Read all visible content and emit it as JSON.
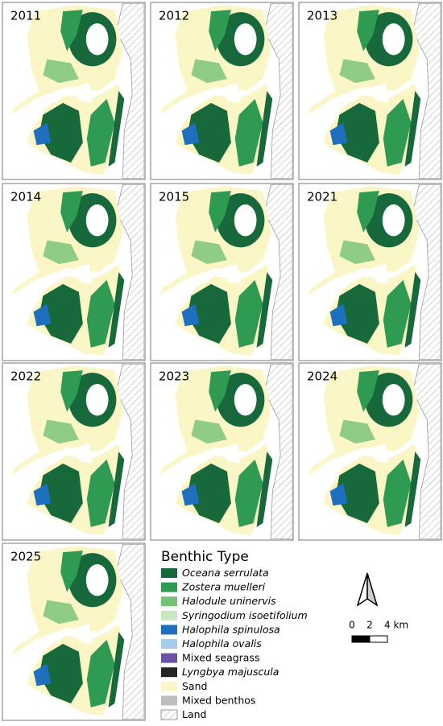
{
  "panels": [
    {
      "label": "2011"
    },
    {
      "label": "2012"
    },
    {
      "label": "2013"
    },
    {
      "label": "2014"
    },
    {
      "label": "2015"
    },
    {
      "label": "2021"
    },
    {
      "label": "2022"
    },
    {
      "label": "2023"
    },
    {
      "label": "2024"
    },
    {
      "label": "2025"
    }
  ],
  "legend": {
    "title": "Benthic Type",
    "items": [
      {
        "label": "Oceana serrulata",
        "color": "#17683a",
        "style": "italic"
      },
      {
        "label": "Zostera muelleri",
        "color": "#2f9a52",
        "style": "italic"
      },
      {
        "label": "Halodule uninervis",
        "color": "#74c273",
        "style": "italic"
      },
      {
        "label": "Syringodium isoetifolium",
        "color": "#c9e7c2",
        "style": "italic"
      },
      {
        "label": "Halophila spinulosa",
        "color": "#1f6fbf",
        "style": "italic"
      },
      {
        "label": "Halophila ovalis",
        "color": "#a5cde9",
        "style": "italic"
      },
      {
        "label": "Mixed seagrass",
        "color": "#6b52a5",
        "style": "normal"
      },
      {
        "label": "Lyngbya majuscula",
        "color": "#242424",
        "style": "italic"
      },
      {
        "label": "Sand",
        "color": "#fbf6c6",
        "style": "normal"
      },
      {
        "label": "Mixed benthos",
        "color": "#bdbdbd",
        "style": "normal"
      },
      {
        "label": "Land",
        "style": "normal"
      }
    ]
  },
  "scale": {
    "labels": [
      "0",
      "2",
      "4 km"
    ]
  }
}
